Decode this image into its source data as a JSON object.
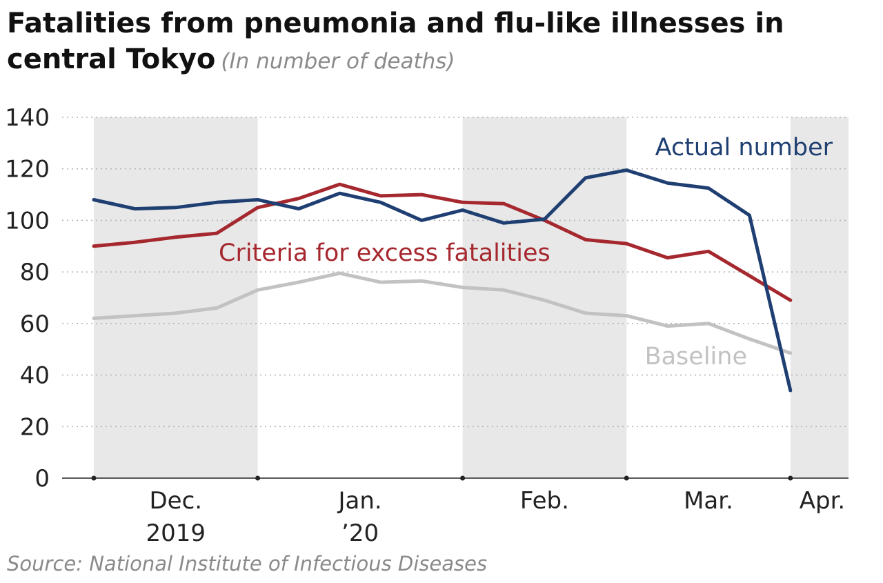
{
  "title": "Fatalities from pneumonia and flu-like illnesses in central Tokyo",
  "subtitle": "(In number of deaths)",
  "source": "Source: National Institute of Infectious Diseases",
  "colors": {
    "actual": "#1f3f72",
    "criteria": "#a6282f",
    "baseline": "#c2c2c2",
    "shade": "#e8e8e8",
    "grid": "#b4b4b4",
    "axis": "#222222"
  },
  "chart_data": {
    "type": "line",
    "title": "Fatalities from pneumonia and flu-like illnesses in central Tokyo",
    "subtitle": "(In number of deaths)",
    "ylim": [
      0,
      140
    ],
    "yticks": [
      0,
      20,
      40,
      60,
      80,
      100,
      120,
      140
    ],
    "grid": true,
    "x_unit": "week",
    "x_axis_start": 0,
    "x_axis_end": 18.5,
    "month_boundaries": [
      0,
      4,
      9,
      13,
      17
    ],
    "shaded_months": [
      [
        0,
        4
      ],
      [
        9,
        13
      ],
      [
        17,
        18.5
      ]
    ],
    "month_labels": [
      {
        "line1": "Dec.",
        "line2": "2019",
        "center": 2
      },
      {
        "line1": "Jan.",
        "line2": "’20",
        "center": 6.5
      },
      {
        "line1": "Feb.",
        "line2": "",
        "center": 11
      },
      {
        "line1": "Mar.",
        "line2": "",
        "center": 15
      },
      {
        "line1": "Apr.",
        "line2": "",
        "center": 18
      }
    ],
    "x": [
      0,
      1,
      2,
      3,
      4,
      5,
      6,
      7,
      8,
      9,
      10,
      11,
      12,
      13,
      14,
      15,
      16,
      17
    ],
    "series": [
      {
        "name": "Actual number",
        "key": "actual",
        "values": [
          108,
          104.5,
          105,
          107,
          108,
          104.5,
          110.5,
          107,
          100,
          104,
          99,
          100.5,
          116.5,
          119.5,
          114.5,
          112.5,
          102,
          34
        ]
      },
      {
        "name": "Criteria for excess fatalities",
        "key": "criteria",
        "values": [
          90,
          91.5,
          93.5,
          95,
          105,
          108.5,
          114,
          109.5,
          110,
          107,
          106.5,
          100,
          92.5,
          91,
          85.5,
          88,
          78.5,
          69
        ]
      },
      {
        "name": "Baseline",
        "key": "baseline",
        "values": [
          62,
          63,
          64,
          66,
          73,
          76,
          79.5,
          76,
          76.5,
          74,
          73,
          69,
          64,
          63,
          59,
          60,
          54,
          48.5
        ]
      }
    ]
  }
}
